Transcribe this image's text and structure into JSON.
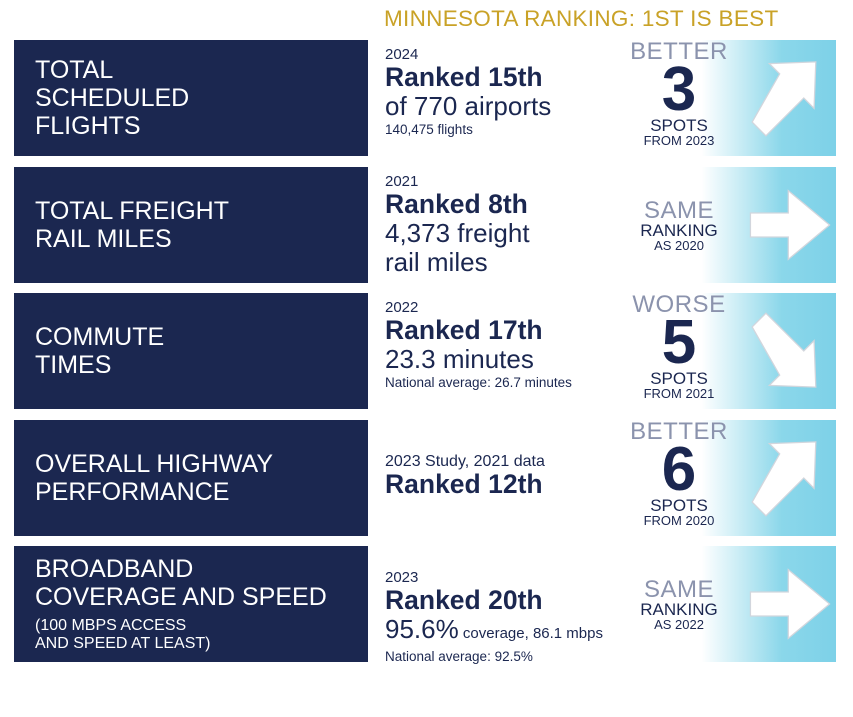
{
  "header": {
    "title": "MINNESOTA RANKING: 1ST IS BEST"
  },
  "colors": {
    "navy": "#1b2750",
    "gold": "#c9a227",
    "cyan": "#7dd1e8",
    "gray": "#8b93ad"
  },
  "rows": [
    {
      "label": "TOTAL\nSCHEDULED\nFLIGHTS",
      "year": "2024",
      "rank": "Ranked 15th",
      "metric": "of 770 airports",
      "note": "140,475 flights",
      "badge": {
        "type": "better",
        "word": "BETTER",
        "number": "3",
        "unit": "SPOTS",
        "from": "FROM 2023",
        "arrow": "arrow-up-right-icon"
      }
    },
    {
      "label": "TOTAL FREIGHT\nRAIL MILES",
      "year": "2021",
      "rank": "Ranked 8th",
      "metric": "4,373 freight\nrail miles",
      "badge": {
        "type": "same",
        "word": "SAME",
        "ranking": "RANKING",
        "as": "AS 2020",
        "arrow": "arrow-right-icon"
      }
    },
    {
      "label": "COMMUTE\nTIMES",
      "year": "2022",
      "rank": "Ranked 17th",
      "metric": "23.3 minutes",
      "note": "National average: 26.7 minutes",
      "badge": {
        "type": "worse",
        "word": "WORSE",
        "number": "5",
        "unit": "SPOTS",
        "from": "FROM 2021",
        "arrow": "arrow-down-right-icon"
      }
    },
    {
      "label": "OVERALL HIGHWAY\nPERFORMANCE",
      "year": "2023 Study, 2021 data",
      "rank": "Ranked 12th",
      "badge": {
        "type": "better",
        "word": "BETTER",
        "number": "6",
        "unit": "SPOTS",
        "from": "FROM 2020",
        "arrow": "arrow-up-right-icon"
      }
    },
    {
      "label": "BROADBAND\nCOVERAGE AND SPEED",
      "sublabel": "(100 MBPS ACCESS\nAND SPEED AT LEAST)",
      "year": "2023",
      "rank": "Ranked 20th",
      "metric_main": "95.6%",
      "metric_small": " coverage, 86.1 mbps",
      "note": "National average: 92.5%",
      "badge": {
        "type": "same",
        "word": "SAME",
        "ranking": "RANKING",
        "as": "AS 2022",
        "arrow": "arrow-right-icon"
      }
    }
  ]
}
